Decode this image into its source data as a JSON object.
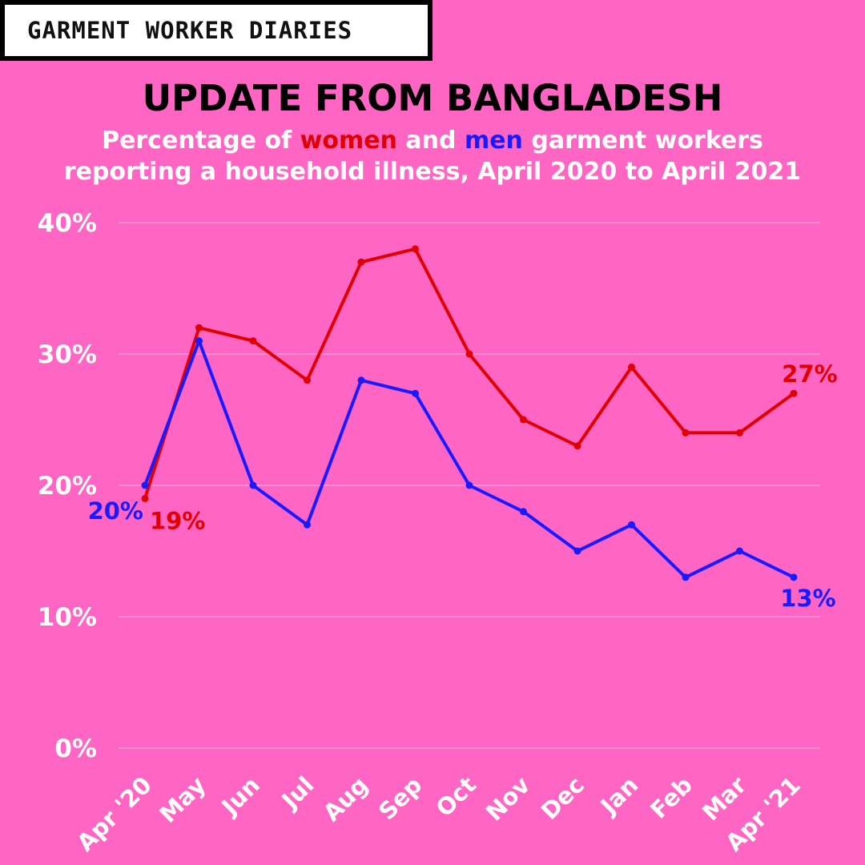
{
  "brand": "GARMENT WORKER DIARIES",
  "title": "UPDATE FROM BANGLADESH",
  "subtitle": {
    "part1": "Percentage of ",
    "women": "women",
    "part2": " and ",
    "men": "men",
    "part3": " garment workers",
    "line2": "reporting a household illness, April 2020 to April 2021"
  },
  "chart_data": {
    "type": "line",
    "categories": [
      "Apr '20",
      "May",
      "Jun",
      "Jul",
      "Aug",
      "Sep",
      "Oct",
      "Nov",
      "Dec",
      "Jan",
      "Feb",
      "Mar",
      "Apr '21"
    ],
    "series": [
      {
        "name": "women",
        "color": "#e00000",
        "values": [
          19,
          32,
          31,
          28,
          37,
          38,
          30,
          25,
          23,
          29,
          24,
          24,
          27
        ]
      },
      {
        "name": "men",
        "color": "#1a1aff",
        "values": [
          20,
          31,
          20,
          17,
          28,
          27,
          20,
          18,
          15,
          17,
          13,
          15,
          13
        ]
      }
    ],
    "yticks": [
      "0%",
      "10%",
      "20%",
      "30%",
      "40%"
    ],
    "ylim": [
      0,
      40
    ],
    "grid": true,
    "annotations": [
      {
        "series": "men",
        "index": 0,
        "text": "20%"
      },
      {
        "series": "women",
        "index": 0,
        "text": "19%"
      },
      {
        "series": "women",
        "index": 12,
        "text": "27%"
      },
      {
        "series": "men",
        "index": 12,
        "text": "13%"
      }
    ]
  }
}
